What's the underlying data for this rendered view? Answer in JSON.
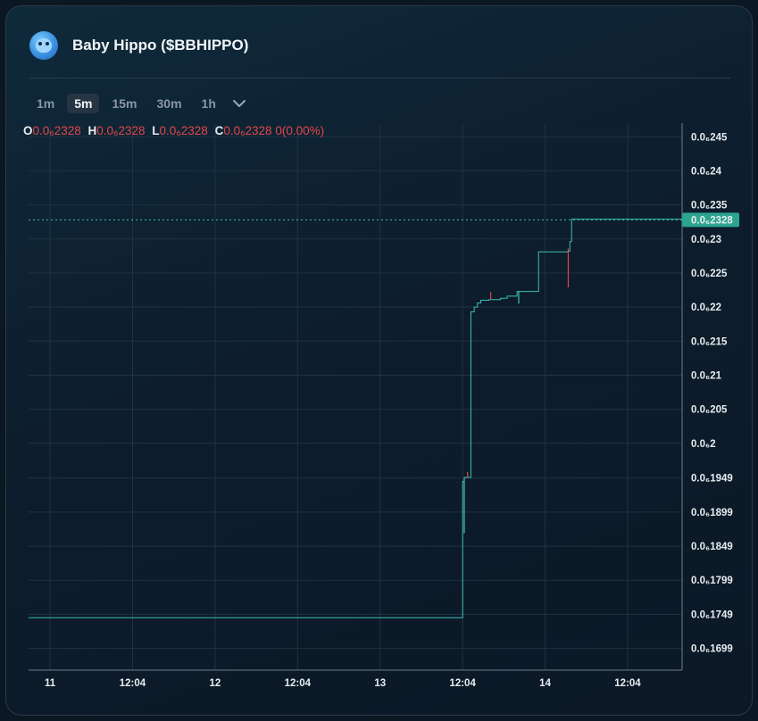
{
  "header": {
    "title": "Baby Hippo ($BBHIPPO)",
    "avatar_icon": "hippo-avatar-icon"
  },
  "timeframes": [
    {
      "label": "1m",
      "active": false
    },
    {
      "label": "5m",
      "active": true
    },
    {
      "label": "15m",
      "active": false
    },
    {
      "label": "30m",
      "active": false
    },
    {
      "label": "1h",
      "active": false
    }
  ],
  "ohlc": {
    "open_key": "O",
    "open": "0.0₆2328",
    "high_key": "H",
    "high": "0.0₆2328",
    "low_key": "L",
    "low": "0.0₆2328",
    "close_key": "C",
    "close": "0.0₆2328",
    "change": "0(0.00%)"
  },
  "colors": {
    "line": "#3fbfb1",
    "down": "#e2474b",
    "price_badge": "#2ba58f",
    "grid": "#1f3342"
  },
  "chart_data": {
    "type": "line",
    "title": "",
    "xlabel": "",
    "ylabel": "",
    "current_price_label": "0.0₆2328",
    "current_price": 2.328,
    "y_unit_note": "values in units of 1e-7",
    "ylim": [
      1.667,
      2.47
    ],
    "y_ticks": [
      {
        "value": 2.45,
        "label": "0.0₆245"
      },
      {
        "value": 2.4,
        "label": "0.0₆24"
      },
      {
        "value": 2.35,
        "label": "0.0₆235"
      },
      {
        "value": 2.3,
        "label": "0.0₆23"
      },
      {
        "value": 2.25,
        "label": "0.0₆225"
      },
      {
        "value": 2.2,
        "label": "0.0₆22"
      },
      {
        "value": 2.15,
        "label": "0.0₆215"
      },
      {
        "value": 2.1,
        "label": "0.0₆21"
      },
      {
        "value": 2.05,
        "label": "0.0₆205"
      },
      {
        "value": 2.0,
        "label": "0.0₆2"
      },
      {
        "value": 1.949,
        "label": "0.0₆1949"
      },
      {
        "value": 1.899,
        "label": "0.0₆1899"
      },
      {
        "value": 1.849,
        "label": "0.0₆1849"
      },
      {
        "value": 1.799,
        "label": "0.0₆1799"
      },
      {
        "value": 1.749,
        "label": "0.0₆1749"
      },
      {
        "value": 1.699,
        "label": "0.0₆1699"
      }
    ],
    "x_ticks": [
      {
        "t": 0.0,
        "label": "11"
      },
      {
        "t": 0.5,
        "label": "12:04"
      },
      {
        "t": 1.0,
        "label": "12"
      },
      {
        "t": 1.5,
        "label": "12:04"
      },
      {
        "t": 2.0,
        "label": "13"
      },
      {
        "t": 2.5,
        "label": "12:04"
      },
      {
        "t": 3.0,
        "label": "14"
      },
      {
        "t": 3.5,
        "label": "12:04"
      }
    ],
    "xlim": [
      -0.13,
      3.83
    ],
    "series": [
      {
        "points": [
          [
            -0.13,
            1.744
          ],
          [
            2.49,
            1.744
          ],
          [
            2.5,
            1.944
          ],
          [
            2.51,
            1.95
          ],
          [
            2.53,
            1.95
          ],
          [
            2.55,
            2.193
          ],
          [
            2.57,
            2.2
          ],
          [
            2.59,
            2.206
          ],
          [
            2.61,
            2.21
          ],
          [
            2.66,
            2.211
          ],
          [
            2.73,
            2.213
          ],
          [
            2.77,
            2.216
          ],
          [
            2.83,
            2.223
          ],
          [
            2.95,
            2.223
          ],
          [
            2.96,
            2.281
          ],
          [
            3.14,
            2.282
          ],
          [
            3.15,
            2.296
          ],
          [
            3.16,
            2.329
          ],
          [
            3.83,
            2.328
          ]
        ]
      }
    ],
    "wicks": [
      {
        "t": 2.51,
        "high": 1.95,
        "low": 1.868,
        "dir": "up"
      },
      {
        "t": 2.53,
        "high": 1.958,
        "low": 1.95,
        "dir": "down"
      },
      {
        "t": 2.67,
        "high": 2.222,
        "low": 2.211,
        "dir": "down"
      },
      {
        "t": 2.84,
        "high": 2.223,
        "low": 2.205,
        "dir": "up"
      },
      {
        "t": 3.14,
        "high": 2.286,
        "low": 2.229,
        "dir": "down"
      }
    ]
  }
}
